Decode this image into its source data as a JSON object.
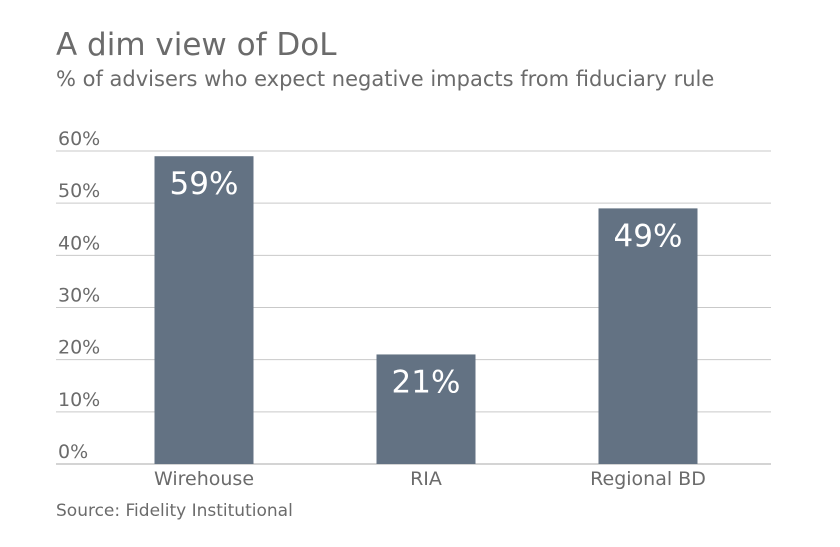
{
  "chart_data": {
    "type": "bar",
    "title": "A dim view of DoL",
    "subtitle": "% of advisers who expect negative impacts from fiduciary rule",
    "categories": [
      "Wirehouse",
      "RIA",
      "Regional BD"
    ],
    "values": [
      59,
      21,
      49
    ],
    "data_labels": [
      "59%",
      "21%",
      "49%"
    ],
    "ylim": [
      0,
      60
    ],
    "yticks": [
      0,
      10,
      20,
      30,
      40,
      50,
      60
    ],
    "ytick_labels": [
      "0%",
      "10%",
      "20%",
      "30%",
      "40%",
      "50%",
      "60%"
    ],
    "xlabel": "",
    "ylabel": "",
    "grid": true,
    "source": "Source: Fidelity Institutional"
  },
  "colors": {
    "bar": "#637283",
    "grid": "#c9c9c9",
    "axis": "#a8a8a8",
    "text": "#6b6b6b"
  }
}
